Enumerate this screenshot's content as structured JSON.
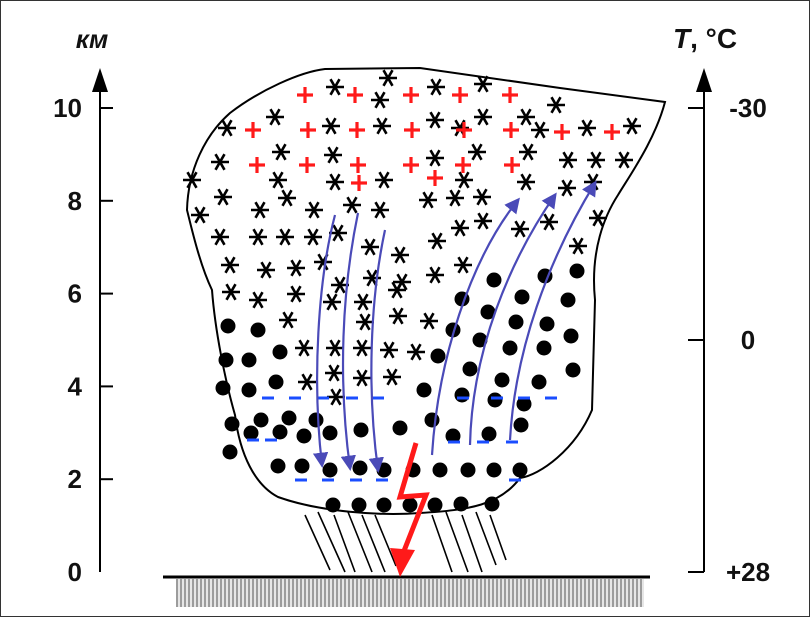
{
  "left_axis": {
    "unit": "км",
    "ticks": [
      {
        "label": "10",
        "value": 10
      },
      {
        "label": "8",
        "value": 8
      },
      {
        "label": "6",
        "value": 6
      },
      {
        "label": "4",
        "value": 4
      },
      {
        "label": "2",
        "value": 2
      },
      {
        "label": "0",
        "value": 0
      }
    ]
  },
  "right_axis": {
    "unit_italic": "T",
    "unit_rest": ", °C",
    "ticks": [
      {
        "label": "-30",
        "value": 10
      },
      {
        "label": "0",
        "value": 5
      },
      {
        "label": "+28",
        "value": 0
      }
    ]
  },
  "colors": {
    "ink": "#000000",
    "positive_charge": "#ff1a1a",
    "negative_charge": "#1a4dff",
    "airflow": "#4a4ab8",
    "lightning": "#ff1a1a",
    "ground_hatch": "#a0a0a0"
  },
  "legend_icons": [
    "ice-crystal-icon",
    "water-droplet-icon",
    "positive-charge-icon",
    "negative-charge-icon",
    "lightning-icon",
    "precipitation-icon"
  ]
}
